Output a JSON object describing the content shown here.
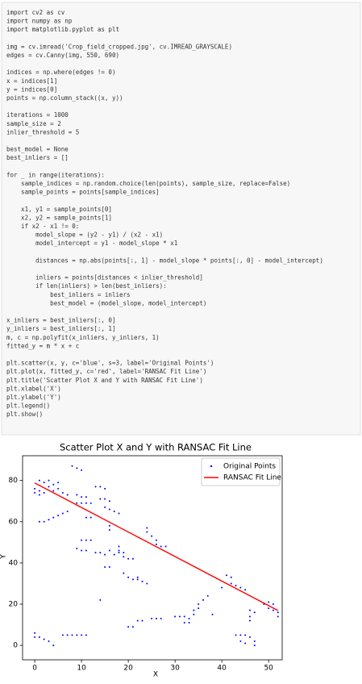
{
  "code_blocks": [
    [
      "import cv2 as cv",
      "import numpy as np",
      "import matplotlib.pyplot as plt"
    ],
    [
      "img = cv.imread('Crop_field_cropped.jpg', cv.IMREAD_GRAYSCALE)",
      "edges = cv.Canny(img, 550, 690)"
    ],
    [
      "indices = np.where(edges != 0)",
      "x = indices[1]",
      "y = indices[0]",
      "points = np.column_stack((x, y))"
    ],
    [
      "iterations = 1000",
      "sample_size = 2",
      "inlier_threshold = 5"
    ],
    [
      "best_model = None",
      "best_inliers = []"
    ],
    [
      "for _ in range(iterations):",
      "    sample_indices = np.random.choice(len(points), sample_size, replace=False)",
      "    sample_points = points[sample_indices]"
    ],
    [
      "    x1, y1 = sample_points[0]",
      "    x2, y2 = sample_points[1]",
      "    if x2 - x1 != 0:",
      "        model_slope = (y2 - y1) / (x2 - x1)",
      "        model_intercept = y1 - model_slope * x1"
    ],
    [
      "        distances = np.abs(points[:, 1] - model_slope * points[:, 0] - model_intercept)"
    ],
    [
      "        inliers = points[distances < inlier_threshold]",
      "        if len(inliers) > len(best_inliers):",
      "            best_inliers = inliers",
      "            best_model = (model_slope, model_intercept)"
    ],
    [
      "x_inliers = best_inliers[:, 0]",
      "y_inliers = best_inliers[:, 1]",
      "m, c = np.polyfit(x_inliers, y_inliers, 1)",
      "fitted_y = m * x + c"
    ],
    [
      "plt.scatter(x, y, c='blue', s=3, label='Original Points')",
      "plt.plot(x, fitted_y, c='red', label='RANSAC Fit Line')",
      "plt.title('Scatter Plot X and Y with RANSAC Fit Line')",
      "plt.xlabel('X')",
      "plt.ylabel('Y')",
      "plt.legend()",
      "plt.show()"
    ]
  ],
  "chart_data": {
    "type": "scatter",
    "title": "Scatter Plot X and Y with RANSAC Fit Line",
    "x_label": "X",
    "y_label": "Y",
    "xlim": [
      -2.6,
      52.9
    ],
    "ylim": [
      -7,
      92
    ],
    "xticks": [
      0,
      10,
      20,
      30,
      40,
      50
    ],
    "yticks": [
      0,
      20,
      40,
      60,
      80
    ],
    "legend": "upper right",
    "series": [
      {
        "name": "Original Points",
        "color": "#0000ff",
        "x": [
          1,
          2,
          3,
          4,
          5,
          0,
          1,
          2,
          3,
          4,
          5,
          6,
          7,
          0,
          1,
          1,
          2,
          3,
          4,
          5,
          6,
          7,
          8,
          9,
          10,
          9,
          10,
          11,
          9,
          10,
          11,
          12,
          11,
          12,
          13,
          14,
          15,
          14,
          15,
          16,
          15,
          16,
          17,
          18,
          16,
          16,
          10,
          11,
          12,
          9,
          10,
          11,
          13,
          14,
          15,
          16,
          17,
          15,
          16,
          18,
          18,
          18,
          19,
          19,
          20,
          21,
          19,
          20,
          21,
          22,
          22,
          23,
          24,
          24,
          24,
          25,
          26,
          26,
          27,
          28,
          14,
          20,
          21,
          22,
          23,
          25,
          26,
          27,
          30,
          31,
          32,
          33,
          34,
          32,
          33,
          34,
          35,
          35,
          36,
          37,
          38,
          40,
          41,
          42,
          42,
          43,
          44,
          45,
          43,
          44,
          45,
          44,
          45,
          46,
          47,
          47,
          46,
          47,
          46,
          46,
          49,
          50,
          51,
          50,
          51,
          52,
          52,
          0,
          0,
          1,
          2,
          3,
          4,
          6,
          7,
          8,
          9,
          10,
          11
        ],
        "values": [
          80,
          79,
          80,
          78,
          79,
          76,
          75,
          74,
          77,
          75,
          76,
          74,
          73,
          74,
          73,
          60,
          60,
          61,
          62,
          63,
          64,
          65,
          87,
          86,
          85,
          73,
          72,
          72,
          69,
          69,
          69,
          69,
          62,
          62,
          77,
          77,
          76,
          71,
          71,
          70,
          67,
          66,
          65,
          64,
          58,
          56,
          51,
          51,
          51,
          47,
          46,
          46,
          45,
          45,
          44,
          46,
          44,
          38,
          38,
          48,
          46,
          45,
          45,
          43,
          42,
          42,
          35,
          33,
          32,
          33,
          32,
          31,
          30,
          57,
          55,
          53,
          51,
          49,
          48,
          48,
          22,
          9,
          9,
          12,
          12,
          13,
          13,
          13,
          14,
          14,
          14,
          13,
          15,
          11,
          11,
          17,
          18,
          20,
          22,
          24,
          15,
          28,
          34,
          33,
          30,
          29,
          28,
          27,
          5,
          5,
          5,
          2,
          1,
          4,
          2,
          0,
          17,
          16,
          14,
          12,
          20,
          21,
          20,
          18,
          17,
          16,
          14,
          6,
          4,
          4,
          3,
          2,
          0,
          5,
          5,
          5,
          5,
          5,
          5
        ]
      },
      {
        "name": "RANSAC Fit Line",
        "color": "#ff0000",
        "x": [
          0,
          52
        ],
        "values": [
          78.8,
          16.9
        ]
      }
    ]
  }
}
